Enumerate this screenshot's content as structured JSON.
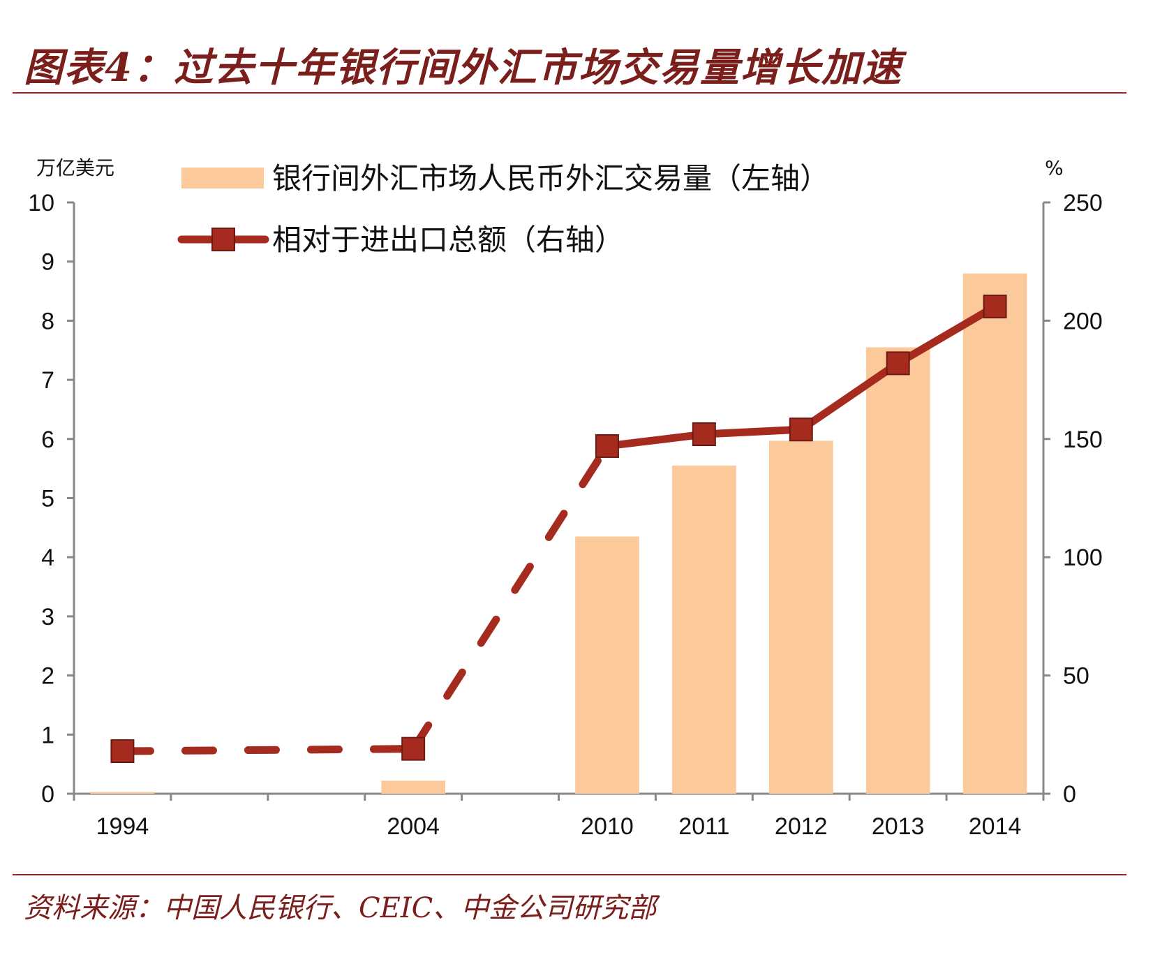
{
  "header": {
    "title": "图表4：过去十年银行间外汇市场交易量增长加速"
  },
  "footer": {
    "source": "资料来源：中国人民银行、CEIC、中金公司研究部"
  },
  "chart_data": {
    "type": "bar",
    "categories": [
      "1994",
      "",
      "",
      "2004",
      "",
      "2010",
      "2011",
      "2012",
      "2013",
      "2014"
    ],
    "series": [
      {
        "name": "银行间外汇市场人民币外汇交易量（左轴）",
        "type": "bar",
        "axis": "left",
        "values": [
          0.03,
          null,
          null,
          0.22,
          null,
          4.35,
          5.55,
          5.97,
          7.55,
          8.8
        ],
        "color": "#fbc99a"
      },
      {
        "name": "相对于进出口总额（右轴）",
        "type": "line",
        "axis": "right",
        "marker": "square",
        "values": [
          18,
          null,
          null,
          19,
          null,
          147,
          152,
          154,
          182,
          206
        ],
        "line_style_note": "dashed",
        "color": "#a62b1f"
      }
    ],
    "left_axis": {
      "unit": "万亿美元",
      "ylim": [
        0,
        10
      ],
      "ticks": [
        "0",
        "1",
        "2",
        "3",
        "4",
        "5",
        "6",
        "7",
        "8",
        "9",
        "10"
      ]
    },
    "right_axis": {
      "unit": "%",
      "ylim": [
        0,
        250
      ],
      "ticks": [
        "0",
        "50",
        "100",
        "150",
        "200",
        "250"
      ]
    },
    "legend_position": "top-left",
    "grid": false
  }
}
